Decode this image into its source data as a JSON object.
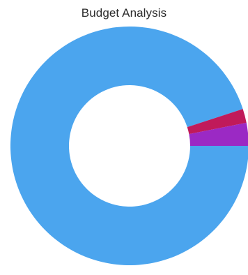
{
  "chart_data": {
    "type": "pie",
    "style": "donut",
    "title": "Budget Analysis",
    "categories": [
      "",
      "",
      ""
    ],
    "values": [
      95.0,
      1.9,
      3.1
    ],
    "colors": [
      "#4ba5ee",
      "#c01a5a",
      "#9b29c4"
    ],
    "start_angle_deg": 0,
    "direction": "clockwise",
    "legend": "none",
    "data_labels": "none"
  }
}
